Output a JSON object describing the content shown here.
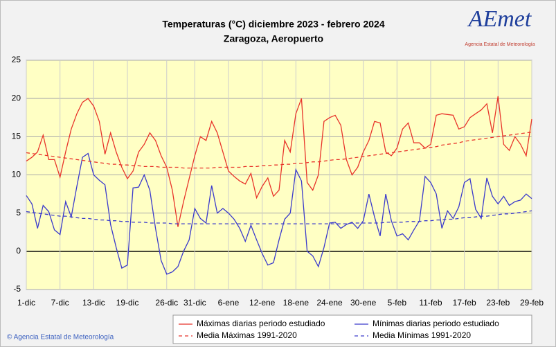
{
  "chart_data": {
    "type": "line",
    "title": "Temperaturas (°C) diciembre 2023 - febrero 2024",
    "subtitle": "Zaragoza, Aeropuerto",
    "logo": "AEmet",
    "logo_caption": "Agencia Estatal de Meteorología",
    "footer": "© Agencia Estatal de Meteorología",
    "categories": [
      "1-dic",
      null,
      null,
      null,
      null,
      null,
      "7-dic",
      null,
      null,
      null,
      null,
      null,
      "13-dic",
      null,
      null,
      null,
      null,
      null,
      "19-dic",
      null,
      null,
      null,
      null,
      null,
      null,
      "26-dic",
      null,
      null,
      null,
      null,
      "31-dic",
      null,
      null,
      null,
      null,
      null,
      "6-ene",
      null,
      null,
      null,
      null,
      null,
      "12-ene",
      null,
      null,
      null,
      null,
      null,
      "18-ene",
      null,
      null,
      null,
      null,
      null,
      "24-ene",
      null,
      null,
      null,
      null,
      null,
      "30-ene",
      null,
      null,
      null,
      null,
      null,
      "5-feb",
      null,
      null,
      null,
      null,
      null,
      "11-feb",
      null,
      null,
      null,
      null,
      null,
      "17-feb",
      null,
      null,
      null,
      null,
      null,
      "23-feb",
      null,
      null,
      null,
      null,
      null,
      "29-feb"
    ],
    "series": [
      {
        "name": "Máximas diarias periodo estudiado",
        "color": "#e8332a",
        "dashed": false,
        "values": [
          11.8,
          12.3,
          13,
          15.2,
          12,
          12,
          9.7,
          13,
          16,
          18,
          19.5,
          20,
          19,
          17,
          12.7,
          15.5,
          13,
          11,
          9.5,
          10.5,
          13,
          14,
          15.5,
          14.5,
          12.5,
          11,
          8,
          3.2,
          6.5,
          9.5,
          12.5,
          15,
          14.5,
          17,
          15.5,
          13,
          10.5,
          9.8,
          9.2,
          8.8,
          10.2,
          7,
          8.5,
          9.6,
          7.2,
          8,
          14.5,
          13,
          18,
          20,
          9,
          8,
          10,
          17,
          17.5,
          17.8,
          16.5,
          12,
          10,
          11,
          13,
          14.5,
          17,
          16.8,
          13,
          12.5,
          13.5,
          16,
          16.8,
          14.2,
          14.2,
          13.5,
          14,
          17.8,
          18,
          17.9,
          17.8,
          16,
          16.3,
          17.5,
          18,
          18.5,
          19.3,
          15.5,
          20.3,
          14,
          13.2,
          15,
          14,
          12.5,
          17.3
        ]
      },
      {
        "name": "Mínimas diarias periodo estudiado",
        "color": "#3a3acc",
        "dashed": false,
        "values": [
          7.3,
          6.2,
          3,
          6,
          5.2,
          2.8,
          2.2,
          6.5,
          4.5,
          8.5,
          12.3,
          12.8,
          10,
          9.3,
          8.7,
          3.5,
          0.5,
          -2.2,
          -1.8,
          8.3,
          8.4,
          10,
          8,
          3,
          -1.2,
          -3,
          -2.7,
          -2,
          0,
          1.5,
          5.6,
          4.3,
          3.7,
          8.6,
          5,
          5.6,
          5,
          4.2,
          3,
          1.3,
          3.4,
          1.5,
          -0.3,
          -1.8,
          -1.5,
          1.5,
          4.2,
          5,
          10.7,
          9.2,
          0,
          -0.6,
          -2,
          0.5,
          3.7,
          3.8,
          3,
          3.5,
          3.8,
          3,
          4,
          7.5,
          4.5,
          2,
          7.5,
          4,
          2,
          2.3,
          1.5,
          2.8,
          4,
          9.8,
          9,
          7.5,
          3,
          5.3,
          4.3,
          5.8,
          9,
          9.5,
          5.5,
          4.3,
          9.6,
          7.2,
          6.2,
          7.2,
          6,
          6.5,
          6.7,
          7.5,
          6.9
        ]
      },
      {
        "name": "Media Máximas 1991-2020",
        "color": "#e8332a",
        "dashed": true,
        "values": [
          12.9,
          12.8,
          12.7,
          12.6,
          12.5,
          12.4,
          12.3,
          12.2,
          12.1,
          12.0,
          11.9,
          11.8,
          11.7,
          11.6,
          11.5,
          11.4,
          11.4,
          11.3,
          11.3,
          11.2,
          11.2,
          11.1,
          11.1,
          11.1,
          11.0,
          11.0,
          11.0,
          11.0,
          10.9,
          10.9,
          10.9,
          10.9,
          10.9,
          10.9,
          11.0,
          11.0,
          11.0,
          11.0,
          11.0,
          11.1,
          11.1,
          11.1,
          11.2,
          11.2,
          11.3,
          11.3,
          11.4,
          11.4,
          11.5,
          11.5,
          11.6,
          11.7,
          11.7,
          11.8,
          11.9,
          12.0,
          12.0,
          12.1,
          12.2,
          12.3,
          12.4,
          12.5,
          12.6,
          12.7,
          12.8,
          12.9,
          13.0,
          13.1,
          13.2,
          13.3,
          13.4,
          13.5,
          13.6,
          13.7,
          13.9,
          14.0,
          14.1,
          14.2,
          14.4,
          14.5,
          14.6,
          14.7,
          14.8,
          14.9,
          15.0,
          15.1,
          15.2,
          15.3,
          15.4,
          15.5,
          15.6
        ]
      },
      {
        "name": "Media Mínimas 1991-2020",
        "color": "#3a3acc",
        "dashed": true,
        "values": [
          5.2,
          5.1,
          5.0,
          4.9,
          4.8,
          4.7,
          4.6,
          4.6,
          4.5,
          4.4,
          4.3,
          4.3,
          4.2,
          4.1,
          4.1,
          4.0,
          4.0,
          3.9,
          3.9,
          3.8,
          3.8,
          3.8,
          3.7,
          3.7,
          3.7,
          3.7,
          3.6,
          3.6,
          3.6,
          3.6,
          3.6,
          3.6,
          3.6,
          3.6,
          3.6,
          3.6,
          3.6,
          3.6,
          3.6,
          3.6,
          3.6,
          3.6,
          3.6,
          3.6,
          3.6,
          3.6,
          3.6,
          3.6,
          3.6,
          3.6,
          3.6,
          3.6,
          3.6,
          3.6,
          3.6,
          3.6,
          3.6,
          3.6,
          3.7,
          3.7,
          3.7,
          3.7,
          3.7,
          3.7,
          3.8,
          3.8,
          3.8,
          3.8,
          3.9,
          3.9,
          3.9,
          4.0,
          4.0,
          4.1,
          4.1,
          4.2,
          4.2,
          4.3,
          4.4,
          4.4,
          4.5,
          4.6,
          4.6,
          4.7,
          4.8,
          4.9,
          4.9,
          5.0,
          5.1,
          5.2,
          5.3
        ]
      }
    ],
    "ylim": [
      -5,
      25
    ],
    "yticks": [
      -5,
      0,
      5,
      10,
      15,
      20,
      25
    ],
    "grid": true,
    "legend": "bottom"
  }
}
